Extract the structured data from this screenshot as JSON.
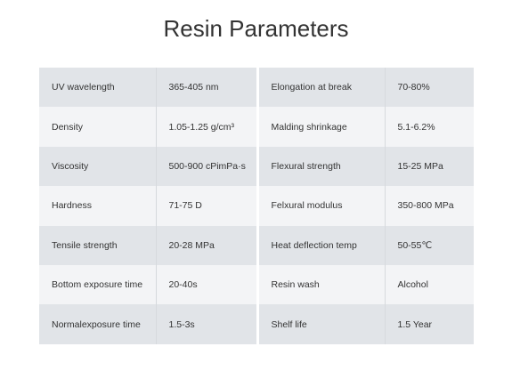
{
  "header": {
    "title": "Resin Parameters"
  },
  "table": {
    "rows": [
      [
        "UV wavelength",
        "365-405 nm",
        "Elongation at break",
        "70-80%"
      ],
      [
        "Density",
        "1.05-1.25 g/cm³",
        "Malding shrinkage",
        "5.1-6.2%"
      ],
      [
        "Viscosity",
        "500-900 cPimPa·s",
        "Flexural strength",
        "15-25 MPa"
      ],
      [
        "Hardness",
        "71-75 D",
        "Felxural modulus",
        "350-800 MPa"
      ],
      [
        "Tensile strength",
        "20-28 MPa",
        "Heat deflection temp",
        "50-55℃"
      ],
      [
        "Bottom exposure time",
        "20-40s",
        "Resin wash",
        "Alcohol"
      ],
      [
        "Normalexposure time",
        "1.5-3s",
        "Shelf life",
        "1.5 Year"
      ]
    ]
  }
}
